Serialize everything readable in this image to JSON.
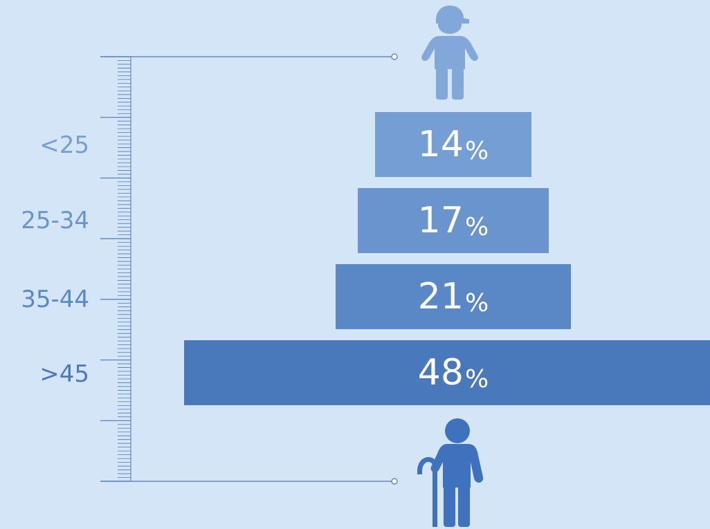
{
  "chart_data": {
    "type": "bar",
    "orientation": "horizontal",
    "layout": "centered-pyramid",
    "categories": [
      "<25",
      "25-34",
      "35-44",
      ">45"
    ],
    "values": [
      14,
      17,
      21,
      48
    ],
    "value_labels": [
      "14",
      "17",
      "21",
      "48"
    ],
    "value_suffix": "%",
    "xlim": [
      0,
      50
    ],
    "grid": false,
    "legend": "none"
  },
  "colors": {
    "background": "#d4e5f8",
    "bars": [
      "#759fd4",
      "#6994cd",
      "#5a88c6",
      "#4978bb"
    ],
    "labels": [
      "#759fd4",
      "#6994cd",
      "#5a88c6",
      "#4978bb"
    ],
    "ruler": "#4a78bb",
    "young_person": "#82a8d9",
    "elder_person": "#3f72bc"
  },
  "icons": {
    "top": "young-person-with-cap-icon",
    "bottom": "elder-person-with-cane-icon"
  }
}
